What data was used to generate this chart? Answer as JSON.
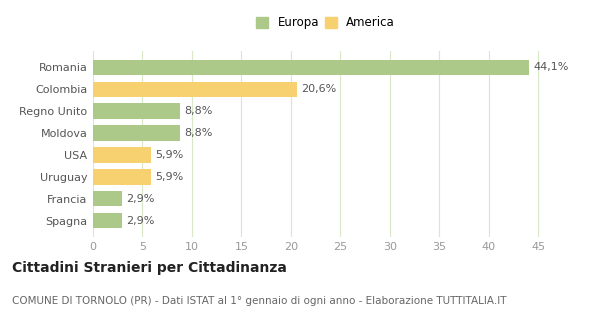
{
  "categories": [
    "Spagna",
    "Francia",
    "Uruguay",
    "USA",
    "Moldova",
    "Regno Unito",
    "Colombia",
    "Romania"
  ],
  "values": [
    2.9,
    2.9,
    5.9,
    5.9,
    8.8,
    8.8,
    20.6,
    44.1
  ],
  "labels": [
    "2,9%",
    "2,9%",
    "5,9%",
    "5,9%",
    "8,8%",
    "8,8%",
    "20,6%",
    "44,1%"
  ],
  "colors": [
    "#adc98a",
    "#adc98a",
    "#f7d070",
    "#f7d070",
    "#adc98a",
    "#adc98a",
    "#f7d070",
    "#adc98a"
  ],
  "legend": [
    {
      "label": "Europa",
      "color": "#adc98a"
    },
    {
      "label": "America",
      "color": "#f7d070"
    }
  ],
  "xlim": [
    0,
    47
  ],
  "xticks": [
    0,
    5,
    10,
    15,
    20,
    25,
    30,
    35,
    40,
    45
  ],
  "title": "Cittadini Stranieri per Cittadinanza",
  "subtitle": "COMUNE DI TORNOLO (PR) - Dati ISTAT al 1° gennaio di ogni anno - Elaborazione TUTTITALIA.IT",
  "background_color": "#ffffff",
  "grid_color": "#d8e8c8",
  "bar_height": 0.7,
  "title_fontsize": 10,
  "subtitle_fontsize": 7.5,
  "label_fontsize": 8,
  "tick_fontsize": 8,
  "legend_fontsize": 8.5
}
